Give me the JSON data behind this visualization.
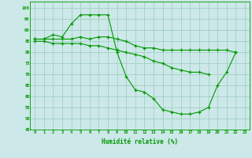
{
  "x": [
    0,
    1,
    2,
    3,
    4,
    5,
    6,
    7,
    8,
    9,
    10,
    11,
    12,
    13,
    14,
    15,
    16,
    17,
    18,
    19,
    20,
    21,
    22,
    23
  ],
  "line1": [
    86,
    86,
    88,
    87,
    93,
    97,
    97,
    97,
    97,
    80,
    69,
    63,
    62,
    59,
    54,
    53,
    52,
    52,
    53,
    55,
    65,
    71,
    80,
    null
  ],
  "line2": [
    86,
    86,
    86,
    86,
    86,
    87,
    86,
    87,
    87,
    86,
    85,
    83,
    82,
    82,
    81,
    81,
    81,
    81,
    81,
    81,
    81,
    81,
    80,
    null
  ],
  "line3": [
    85,
    85,
    84,
    84,
    84,
    84,
    83,
    83,
    82,
    81,
    80,
    79,
    78,
    76,
    75,
    73,
    72,
    71,
    71,
    70,
    null,
    null,
    null,
    null
  ],
  "xlim": [
    -0.5,
    23.5
  ],
  "ylim": [
    45,
    103
  ],
  "yticks": [
    45,
    50,
    55,
    60,
    65,
    70,
    75,
    80,
    85,
    90,
    95,
    100
  ],
  "xticks": [
    0,
    1,
    2,
    3,
    4,
    5,
    6,
    7,
    8,
    9,
    10,
    11,
    12,
    13,
    14,
    15,
    16,
    17,
    18,
    19,
    20,
    21,
    22,
    23
  ],
  "xlabel": "Humidité relative (%)",
  "bg_color": "#cce8e8",
  "grid_color": "#99ccbb",
  "line_color": "#009900",
  "marker": "+",
  "markersize": 3,
  "linewidth": 0.8
}
